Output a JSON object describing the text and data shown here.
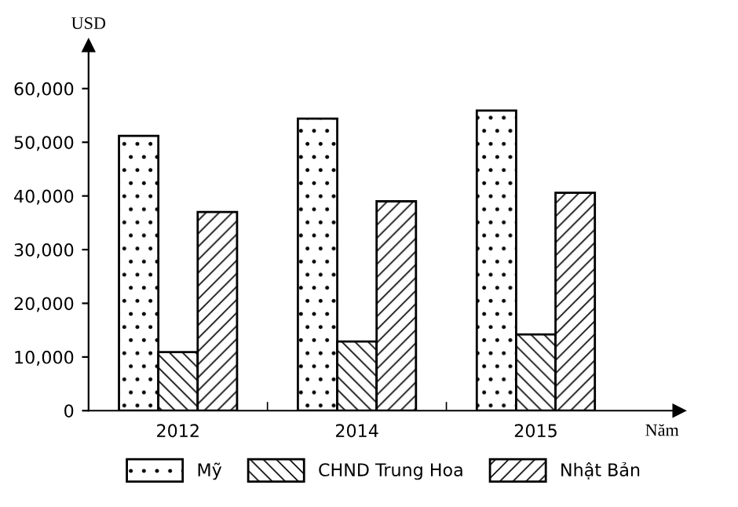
{
  "chart_data": {
    "type": "bar",
    "xlabel": "Năm",
    "ylabel": "USD",
    "categories": [
      "2012",
      "2014",
      "2015"
    ],
    "series": [
      {
        "name": "Mỹ",
        "color": "#000000",
        "values": [
          51200,
          54400,
          55900
        ]
      },
      {
        "name": "CHND Trung Hoa",
        "color": "#000000",
        "values": [
          10900,
          12900,
          14200
        ]
      },
      {
        "name": "Nhật Bản",
        "color": "#000000",
        "values": [
          37000,
          39000,
          40600
        ]
      }
    ],
    "ylim": [
      0,
      68000
    ],
    "yticks": [
      {
        "value": 0,
        "label": "0"
      },
      {
        "value": 10000,
        "label": "10,000"
      },
      {
        "value": 20000,
        "label": "20,000"
      },
      {
        "value": 30000,
        "label": "30,000"
      },
      {
        "value": 40000,
        "label": "40,000"
      },
      {
        "value": 50000,
        "label": "50,000"
      },
      {
        "value": 60000,
        "label": "60,000"
      }
    ],
    "grid": false,
    "legend": "bottom"
  }
}
